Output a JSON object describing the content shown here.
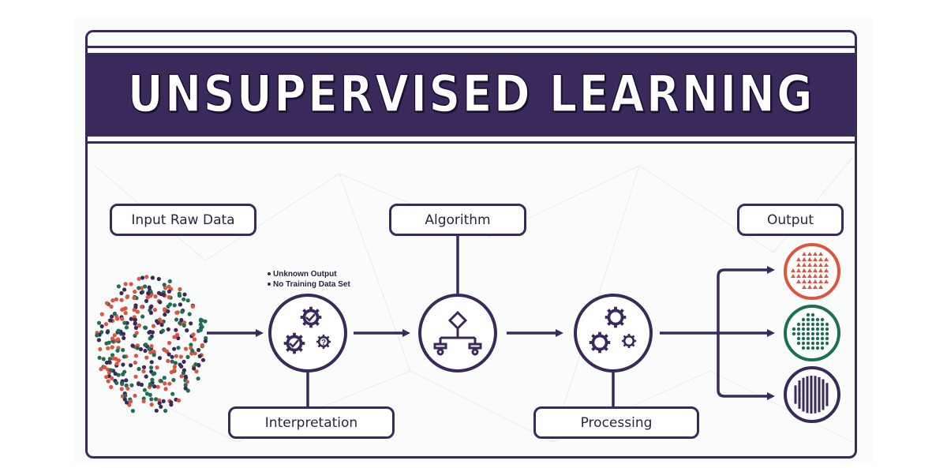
{
  "title": "UNSUPERVISED LEARNING",
  "stages": {
    "input_label": "Input Raw Data",
    "algorithm_label": "Algorithm",
    "output_label": "Output",
    "interpretation_label": "Interpretation",
    "processing_label": "Processing"
  },
  "notes": [
    "Unknown Output",
    "No Training Data Set"
  ],
  "interpretation_gear_mark": "?",
  "colors": {
    "primary": "#3a2a5c",
    "red_cluster": "#e0533f",
    "green_cluster": "#1e6e55",
    "purple_cluster": "#3a2a5c"
  },
  "icons": [
    "gears-check-icon",
    "flowchart-icon",
    "gears-icon",
    "triangle-cluster-icon",
    "dot-cluster-icon",
    "bar-cluster-icon"
  ]
}
